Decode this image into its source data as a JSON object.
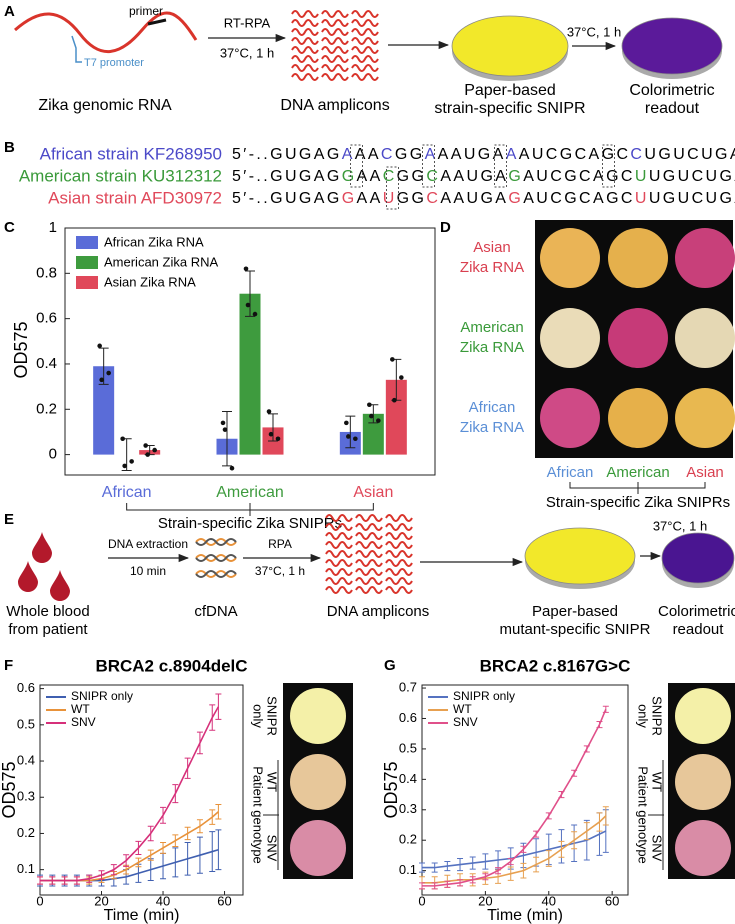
{
  "panel_a": {
    "label": "A",
    "rna_label": "Zika genomic RNA",
    "primer": "primer",
    "promoter": "T7 promoter",
    "step1_top": "RT-RPA",
    "step1_bottom": "37°C, 1 h",
    "amplicons": "DNA amplicons",
    "sensor_lines": [
      "Paper-based",
      "strain-specific SNIPR"
    ],
    "step2": "37°C, 1 h",
    "readout_lines": [
      "Colorimetric",
      "readout"
    ]
  },
  "panel_b": {
    "label": "B",
    "rows": [
      {
        "name": "African strain KF268950",
        "color": "#4b49c8",
        "segments": [
          "5′-..GUGAG",
          "A",
          "AA",
          "C",
          "GG",
          "A",
          "AAUGA",
          "A",
          "AUCGCAGC",
          "C",
          "UGUCUGA..-3′"
        ]
      },
      {
        "name": "American strain KU312312",
        "color": "#3a9a3a",
        "segments": [
          "5′-..GUGAG",
          "G",
          "AA",
          "C",
          "GG",
          "C",
          "AAUGA",
          "G",
          "AUCGCAGC",
          "U",
          "UGUCUGA..-3′"
        ]
      },
      {
        "name": "Asian strain AFD30972",
        "color": "#e0485a",
        "segments": [
          "5′-..GUGAG",
          "G",
          "AA",
          "U",
          "GG",
          "C",
          "AAUGA",
          "G",
          "AUCGCAGC",
          "U",
          "UGUCUGA..-3′"
        ]
      }
    ]
  },
  "chart_data": [
    {
      "type": "bar",
      "panel_label": "C",
      "ylabel": "OD575",
      "xlabel": "Strain-specific Zika SNIPRs",
      "categories": [
        "African",
        "American",
        "Asian"
      ],
      "ylim": [
        -0.09,
        1.0
      ],
      "yticks": [
        0,
        0.2,
        0.4,
        0.6,
        0.8,
        1
      ],
      "series": [
        {
          "name": "African Zika RNA",
          "color": "#5a6cd8",
          "values": [
            0.39,
            0.07,
            0.1
          ],
          "errors": [
            0.08,
            0.12,
            0.07
          ],
          "points": [
            [
              0.48,
              0.36,
              0.33
            ],
            [
              0.14,
              -0.06,
              0.11
            ],
            [
              0.14,
              0.07,
              0.08
            ]
          ]
        },
        {
          "name": "American Zika RNA",
          "color": "#3e9b3e",
          "values": [
            0.0,
            0.71,
            0.18
          ],
          "errors": [
            0.07,
            0.1,
            0.04
          ],
          "points": [
            [
              0.07,
              -0.03,
              -0.05
            ],
            [
              0.82,
              0.62,
              0.66
            ],
            [
              0.22,
              0.15,
              0.17
            ]
          ]
        },
        {
          "name": "Asian Zika RNA",
          "color": "#e0485a",
          "values": [
            0.02,
            0.12,
            0.33
          ],
          "errors": [
            0.02,
            0.06,
            0.09
          ],
          "points": [
            [
              0.04,
              0.02,
              0.0
            ],
            [
              0.19,
              0.07,
              0.09
            ],
            [
              0.42,
              0.34,
              0.24
            ]
          ]
        }
      ]
    },
    {
      "type": "line",
      "panel_label": "F",
      "title": "BRCA2 c.8904delC",
      "xlabel": "Time (min)",
      "ylabel": "OD575",
      "x": [
        0,
        4,
        8,
        12,
        16,
        20,
        24,
        28,
        32,
        36,
        40,
        44,
        48,
        52,
        56,
        58
      ],
      "xlim": [
        0,
        66
      ],
      "xticks": [
        0,
        20,
        40,
        60
      ],
      "ylim": [
        0.03,
        0.61
      ],
      "yticks": [
        0.1,
        0.2,
        0.3,
        0.4,
        0.5,
        0.6
      ],
      "image_labels": {
        "top": [
          "SNIPR",
          "only"
        ],
        "group": "Patient genotype",
        "rows": [
          "WT",
          "SNV"
        ]
      },
      "series": [
        {
          "name": "SNIPR only",
          "color": "#3f5fb0",
          "values": [
            0.07,
            0.07,
            0.07,
            0.07,
            0.07,
            0.07,
            0.075,
            0.08,
            0.09,
            0.1,
            0.11,
            0.12,
            0.13,
            0.14,
            0.15,
            0.155
          ],
          "errors": [
            0.015,
            0.015,
            0.015,
            0.015,
            0.015,
            0.015,
            0.02,
            0.02,
            0.025,
            0.03,
            0.035,
            0.04,
            0.045,
            0.05,
            0.055,
            0.055
          ]
        },
        {
          "name": "WT",
          "color": "#e8923a",
          "values": [
            0.07,
            0.07,
            0.07,
            0.07,
            0.07,
            0.075,
            0.085,
            0.1,
            0.12,
            0.14,
            0.16,
            0.18,
            0.2,
            0.22,
            0.245,
            0.26
          ],
          "errors": [
            0.01,
            0.01,
            0.01,
            0.01,
            0.01,
            0.01,
            0.01,
            0.012,
            0.012,
            0.014,
            0.015,
            0.016,
            0.017,
            0.018,
            0.02,
            0.02
          ]
        },
        {
          "name": "SNV",
          "color": "#d6307a",
          "values": [
            0.07,
            0.07,
            0.07,
            0.07,
            0.075,
            0.085,
            0.1,
            0.125,
            0.16,
            0.2,
            0.25,
            0.31,
            0.38,
            0.45,
            0.52,
            0.55
          ],
          "errors": [
            0.01,
            0.01,
            0.01,
            0.01,
            0.01,
            0.012,
            0.014,
            0.016,
            0.018,
            0.02,
            0.022,
            0.025,
            0.028,
            0.03,
            0.035,
            0.035
          ]
        }
      ]
    },
    {
      "type": "line",
      "panel_label": "G",
      "title": "BRCA2 c.8167G>C",
      "xlabel": "Time (min)",
      "ylabel": "OD575",
      "x": [
        0,
        4,
        8,
        12,
        16,
        20,
        24,
        28,
        32,
        36,
        40,
        44,
        48,
        52,
        56,
        58
      ],
      "xlim": [
        0,
        65
      ],
      "xticks": [
        0,
        20,
        40,
        60
      ],
      "ylim": [
        0.02,
        0.71
      ],
      "yticks": [
        0.1,
        0.2,
        0.3,
        0.4,
        0.5,
        0.6,
        0.7
      ],
      "image_labels": {
        "top": [
          "SNIPR",
          "only"
        ],
        "group": "Patient genotype",
        "rows": [
          "WT",
          "SNV"
        ]
      },
      "series": [
        {
          "name": "SNIPR only",
          "color": "#5572c0",
          "values": [
            0.11,
            0.11,
            0.115,
            0.12,
            0.125,
            0.13,
            0.135,
            0.14,
            0.15,
            0.16,
            0.17,
            0.18,
            0.19,
            0.2,
            0.22,
            0.23
          ],
          "errors": [
            0.015,
            0.015,
            0.015,
            0.02,
            0.02,
            0.025,
            0.03,
            0.035,
            0.04,
            0.045,
            0.05,
            0.055,
            0.06,
            0.065,
            0.07,
            0.07
          ]
        },
        {
          "name": "WT",
          "color": "#e7a050",
          "values": [
            0.06,
            0.06,
            0.065,
            0.07,
            0.07,
            0.075,
            0.08,
            0.09,
            0.1,
            0.12,
            0.14,
            0.17,
            0.2,
            0.23,
            0.26,
            0.28
          ],
          "errors": [
            0.02,
            0.02,
            0.02,
            0.02,
            0.02,
            0.02,
            0.022,
            0.022,
            0.024,
            0.024,
            0.026,
            0.026,
            0.028,
            0.028,
            0.03,
            0.03
          ]
        },
        {
          "name": "SNV",
          "color": "#e0508a",
          "values": [
            0.05,
            0.05,
            0.055,
            0.06,
            0.07,
            0.08,
            0.1,
            0.13,
            0.17,
            0.22,
            0.28,
            0.35,
            0.42,
            0.5,
            0.58,
            0.63
          ],
          "errors": [
            0.01,
            0.01,
            0.01,
            0.01,
            0.01,
            0.01,
            0.01,
            0.01,
            0.01,
            0.01,
            0.01,
            0.01,
            0.01,
            0.01,
            0.01,
            0.01
          ]
        }
      ]
    }
  ],
  "panel_d": {
    "label": "D",
    "row_labels": [
      [
        "Asian",
        "Zika RNA"
      ],
      [
        "American",
        "Zika RNA"
      ],
      [
        "African",
        "Zika RNA"
      ]
    ],
    "row_colors": [
      "#d94050",
      "#3a9a3a",
      "#5b8fd6"
    ],
    "col_labels": [
      "African",
      "American",
      "Asian"
    ],
    "col_colors": [
      "#5b8fd6",
      "#3a9a3a",
      "#d94050"
    ],
    "axis_label": "Strain-specific Zika SNIPRs"
  },
  "panel_e": {
    "label": "E",
    "blood_lines": [
      "Whole blood",
      "from patient"
    ],
    "extraction_top": "DNA extraction",
    "extraction_bottom": "10 min",
    "cfdna": "cfDNA",
    "rpa_top": "RPA",
    "rpa_bottom": "37°C, 1 h",
    "amplicons": "DNA amplicons",
    "sensor_lines": [
      "Paper-based",
      "mutant-specific SNIPR"
    ],
    "step2": "37°C, 1 h",
    "readout_lines": [
      "Colorimetric",
      "readout"
    ]
  }
}
